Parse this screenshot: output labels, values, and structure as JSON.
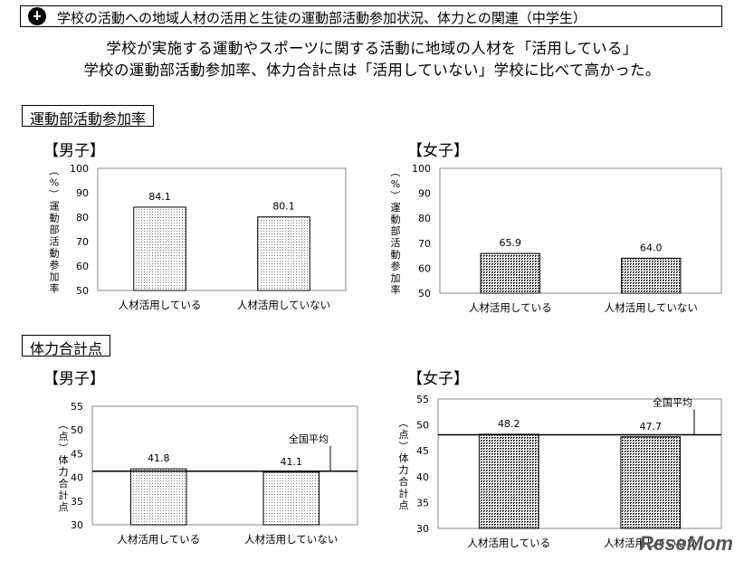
{
  "header": {
    "title": "学校の活動への地域人材の活用と生徒の運動部活動参加状況、体力との関連（中学生）"
  },
  "summary": {
    "line1": "学校が実施する運動やスポーツに関する活動に地域の人材を「活用している」",
    "line2": "学校の運動部活動参加率、体力合計点は「活用していない」学校に比べて高かった。"
  },
  "sections": {
    "participation": "運動部活動参加率",
    "fitness": "体力合計点"
  },
  "watermark": "ReseMom",
  "chart_data": [
    {
      "type": "bar",
      "title": "【男子】",
      "ylabel": "（%）運動部活動参加率",
      "categories": [
        "人材活用している",
        "人材活用していない"
      ],
      "values": [
        84.1,
        80.1
      ],
      "ylim": [
        50,
        100
      ],
      "yticks": [
        50,
        60,
        70,
        80,
        90,
        100
      ],
      "pattern": "light",
      "reference_line": null
    },
    {
      "type": "bar",
      "title": "【女子】",
      "ylabel": "（%）運動部活動参加率",
      "categories": [
        "人材活用している",
        "人材活用していない"
      ],
      "values": [
        65.9,
        64.0
      ],
      "ylim": [
        50,
        100
      ],
      "yticks": [
        50,
        60,
        70,
        80,
        90,
        100
      ],
      "pattern": "dark",
      "reference_line": null
    },
    {
      "type": "bar",
      "title": "【男子】",
      "ylabel": "（点）体力合計点",
      "categories": [
        "人材活用している",
        "人材活用していない"
      ],
      "values": [
        41.8,
        41.1
      ],
      "ylim": [
        30,
        55
      ],
      "yticks": [
        30,
        35,
        40,
        45,
        50,
        55
      ],
      "pattern": "light",
      "reference_line": {
        "label": "全国平均",
        "value": 41.3
      }
    },
    {
      "type": "bar",
      "title": "【女子】",
      "ylabel": "（点）体力合計点",
      "categories": [
        "人材活用している",
        "人材活用していない"
      ],
      "values": [
        48.2,
        47.7
      ],
      "ylim": [
        30,
        55
      ],
      "yticks": [
        30,
        35,
        40,
        45,
        50,
        55
      ],
      "pattern": "dark",
      "reference_line": {
        "label": "全国平均",
        "value": 48.1
      }
    }
  ]
}
